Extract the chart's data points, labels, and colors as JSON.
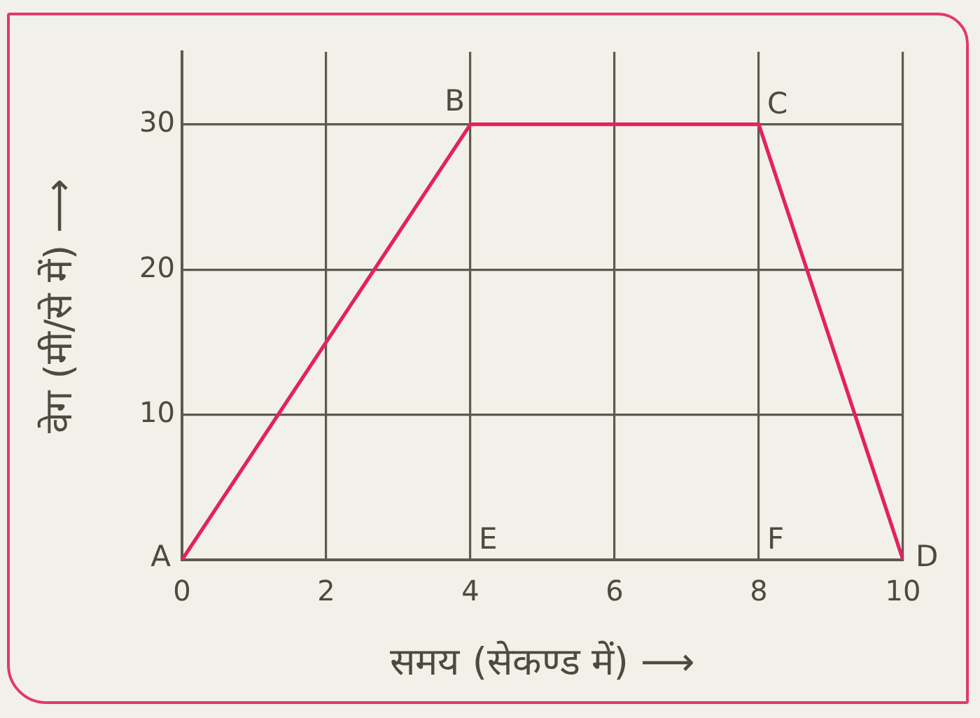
{
  "chart_data": {
    "type": "line",
    "xlabel": "समय (सेकण्ड में) ⟶",
    "ylabel": "वेग (मी/से में) ⟶",
    "x": [
      0,
      4,
      8,
      10
    ],
    "series": [
      {
        "color": "#e3225f",
        "values": [
          0,
          30,
          30,
          0
        ]
      }
    ],
    "xlim": [
      0,
      10
    ],
    "xticks": [
      0,
      2,
      4,
      6,
      8,
      10
    ],
    "ylim": [
      0,
      35
    ],
    "yticks": [
      10,
      20,
      30
    ],
    "grid": true,
    "marker": "none",
    "line_style": "solid",
    "annotations": [
      {
        "text": "A",
        "x": 0,
        "y": 0
      },
      {
        "text": "B",
        "x": 4,
        "y": 30
      },
      {
        "text": "C",
        "x": 8,
        "y": 30
      },
      {
        "text": "D",
        "x": 10,
        "y": 0
      },
      "E",
      "F"
    ]
  }
}
